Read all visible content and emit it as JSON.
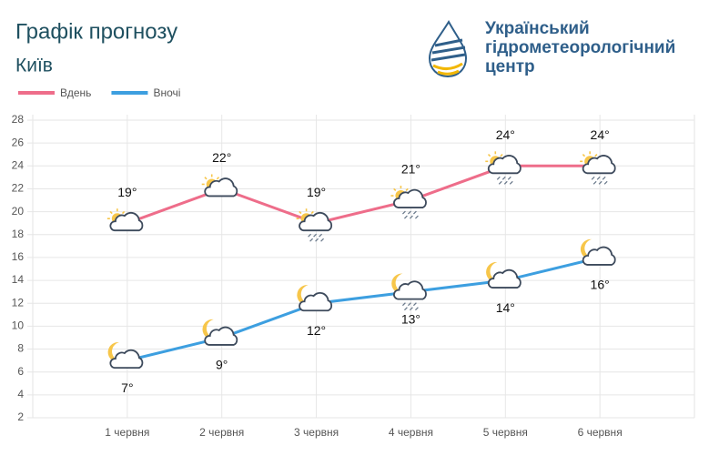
{
  "header": {
    "title": "Графік прогнозу",
    "city": "Київ",
    "org": [
      "Український",
      "гідрометеорологічний",
      "центр"
    ]
  },
  "chart_data": {
    "type": "line",
    "categories": [
      "1 червня",
      "2 червня",
      "3 червня",
      "4 червня",
      "5 червня",
      "6 червня"
    ],
    "series": [
      {
        "name": "Вдень",
        "color": "#ee6d8a",
        "values": [
          19,
          22,
          19,
          21,
          24,
          24
        ],
        "value_labels": [
          "19°",
          "22°",
          "19°",
          "21°",
          "24°",
          "24°"
        ]
      },
      {
        "name": "Вночі",
        "color": "#3d9fe0",
        "values": [
          7,
          9,
          12,
          13,
          14,
          16
        ],
        "value_labels": [
          "7°",
          "9°",
          "12°",
          "13°",
          "14°",
          "16°"
        ]
      }
    ],
    "ylim": [
      2,
      28
    ],
    "yticks": [
      2,
      4,
      6,
      8,
      10,
      12,
      14,
      16,
      18,
      20,
      22,
      24,
      26,
      28
    ],
    "grid": true
  }
}
